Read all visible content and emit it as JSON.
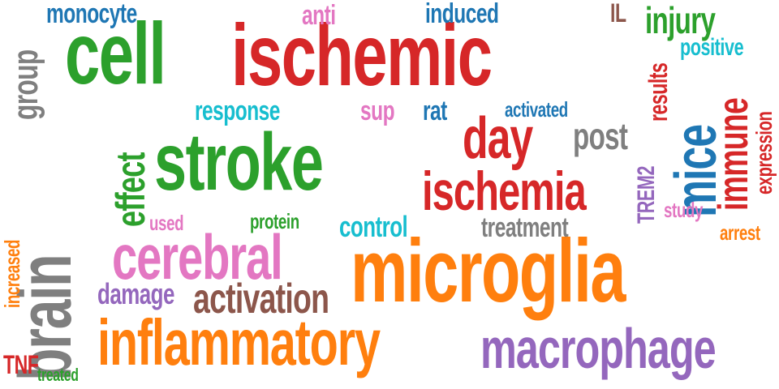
{
  "colors": {
    "green": "#2ca02c",
    "red": "#d62728",
    "orange": "#ff7f0e",
    "blue": "#1f77b4",
    "pink": "#e377c2",
    "cyan": "#17becf",
    "gray": "#7f7f7f",
    "brown": "#8c564b",
    "purple": "#9467bd"
  },
  "words": [
    {
      "text": "microglia",
      "color": "orange"
    },
    {
      "text": "ischemic",
      "color": "red"
    },
    {
      "text": "stroke",
      "color": "green"
    },
    {
      "text": "brain",
      "color": "gray"
    },
    {
      "text": "cell",
      "color": "green"
    },
    {
      "text": "inflammatory",
      "color": "orange"
    },
    {
      "text": "cerebral",
      "color": "pink"
    },
    {
      "text": "macrophage",
      "color": "purple"
    },
    {
      "text": "ischemia",
      "color": "red"
    },
    {
      "text": "day",
      "color": "red"
    },
    {
      "text": "mice",
      "color": "blue"
    },
    {
      "text": "activation",
      "color": "brown"
    },
    {
      "text": "immune",
      "color": "red"
    },
    {
      "text": "injury",
      "color": "green"
    },
    {
      "text": "effect",
      "color": "green"
    },
    {
      "text": "post",
      "color": "gray"
    },
    {
      "text": "group",
      "color": "gray"
    },
    {
      "text": "monocyte",
      "color": "blue"
    },
    {
      "text": "damage",
      "color": "purple"
    },
    {
      "text": "control",
      "color": "cyan"
    },
    {
      "text": "treatment",
      "color": "gray"
    },
    {
      "text": "response",
      "color": "cyan"
    },
    {
      "text": "induced",
      "color": "blue"
    },
    {
      "text": "anti",
      "color": "pink"
    },
    {
      "text": "rat",
      "color": "blue"
    },
    {
      "text": "sup",
      "color": "pink"
    },
    {
      "text": "results",
      "color": "red"
    },
    {
      "text": "expression",
      "color": "red"
    },
    {
      "text": "positive",
      "color": "cyan"
    },
    {
      "text": "TREM2",
      "color": "purple"
    },
    {
      "text": "activated",
      "color": "blue"
    },
    {
      "text": "increased",
      "color": "orange"
    },
    {
      "text": "IL",
      "color": "brown"
    },
    {
      "text": "protein",
      "color": "green"
    },
    {
      "text": "used",
      "color": "pink"
    },
    {
      "text": "study",
      "color": "pink"
    },
    {
      "text": "arrest",
      "color": "orange"
    },
    {
      "text": "TNF",
      "color": "red"
    },
    {
      "text": "treated",
      "color": "green"
    }
  ]
}
